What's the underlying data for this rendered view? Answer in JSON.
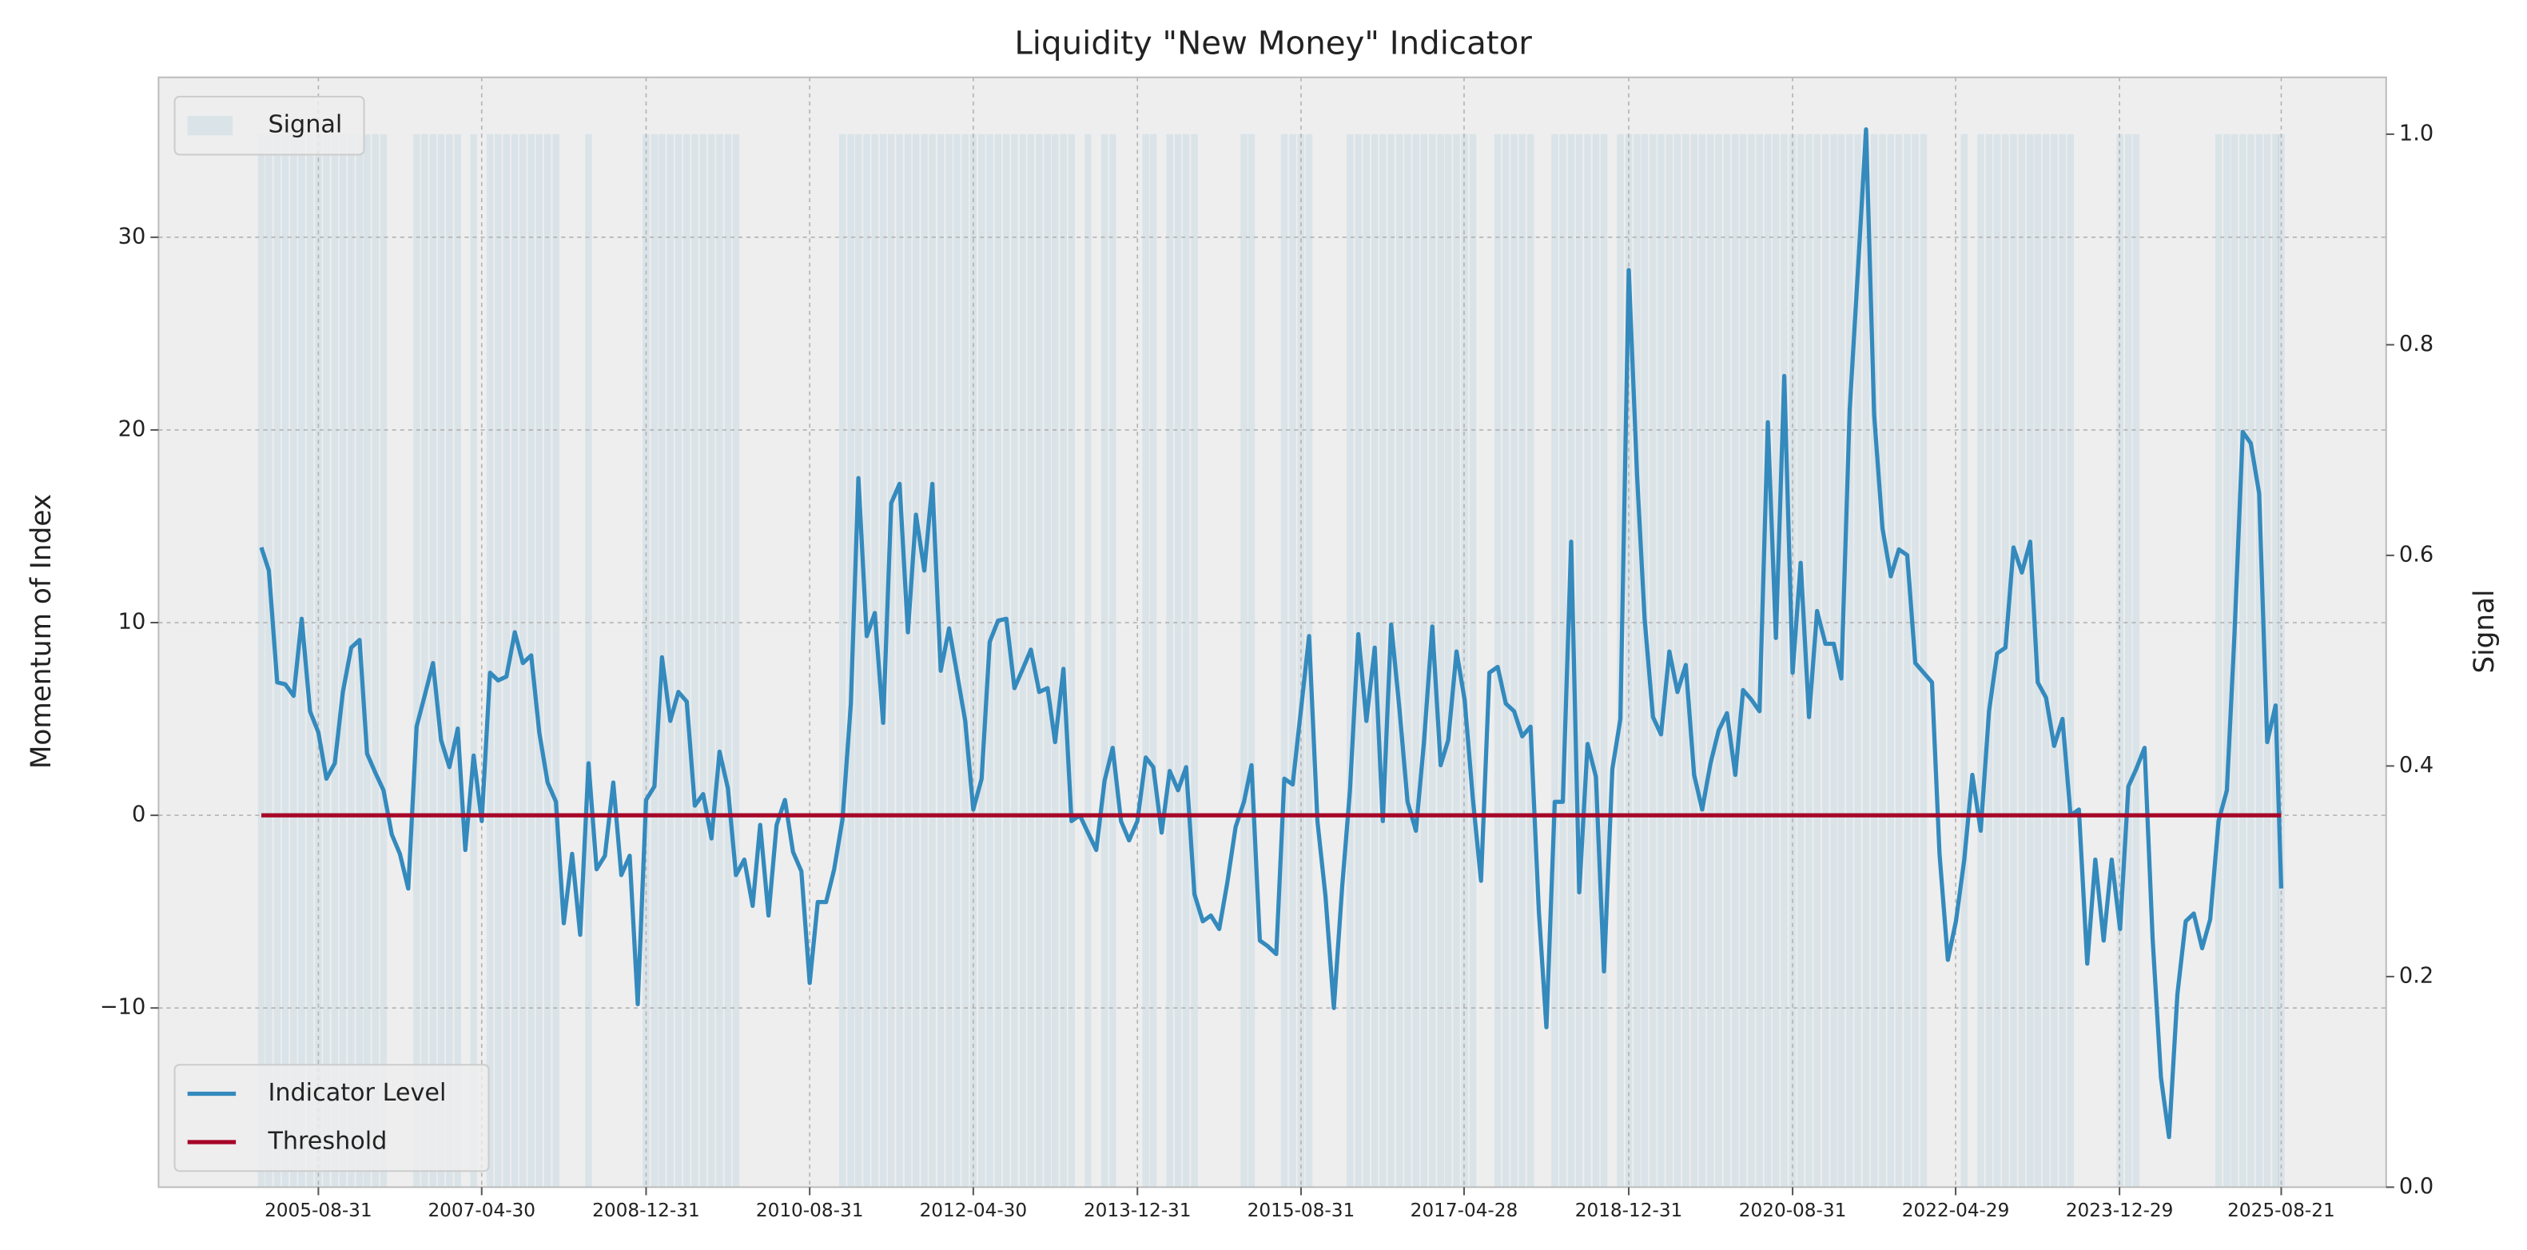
{
  "chart_data": {
    "type": "line",
    "title": "Liquidity \"New Money\" Indicator",
    "ylabel": "Momentum of Index",
    "y2label": "Signal",
    "x": [
      "2005-01-31",
      "2005-02-28",
      "2005-03-31",
      "2005-04-30",
      "2005-05-31",
      "2005-06-30",
      "2005-07-31",
      "2005-08-31",
      "2005-09-30",
      "2005-10-31",
      "2005-11-30",
      "2005-12-31",
      "2006-01-31",
      "2006-02-28",
      "2006-03-31",
      "2006-04-30",
      "2006-05-31",
      "2006-06-30",
      "2006-07-31",
      "2006-08-31",
      "2006-09-30",
      "2006-10-31",
      "2006-11-30",
      "2006-12-31",
      "2007-01-31",
      "2007-02-28",
      "2007-03-31",
      "2007-04-30",
      "2007-05-31",
      "2007-06-30",
      "2007-07-31",
      "2007-08-31",
      "2007-09-30",
      "2007-10-31",
      "2007-11-30",
      "2007-12-31",
      "2008-01-31",
      "2008-02-29",
      "2008-03-31",
      "2008-04-30",
      "2008-05-31",
      "2008-06-30",
      "2008-07-31",
      "2008-08-31",
      "2008-09-30",
      "2008-10-31",
      "2008-11-30",
      "2008-12-31",
      "2009-01-31",
      "2009-02-28",
      "2009-03-31",
      "2009-04-30",
      "2009-05-31",
      "2009-06-30",
      "2009-07-31",
      "2009-08-31",
      "2009-09-30",
      "2009-10-31",
      "2009-11-30",
      "2009-12-31",
      "2010-01-31",
      "2010-02-28",
      "2010-03-31",
      "2010-04-30",
      "2010-05-31",
      "2010-06-30",
      "2010-07-31",
      "2010-08-31",
      "2010-09-30",
      "2010-10-31",
      "2010-11-30",
      "2010-12-31",
      "2011-01-31",
      "2011-02-28",
      "2011-03-31",
      "2011-04-30",
      "2011-05-31",
      "2011-06-30",
      "2011-07-31",
      "2011-08-31",
      "2011-09-30",
      "2011-10-31",
      "2011-11-30",
      "2011-12-31",
      "2012-01-31",
      "2012-02-29",
      "2012-03-31",
      "2012-04-30",
      "2012-05-31",
      "2012-06-30",
      "2012-07-31",
      "2012-08-31",
      "2012-09-30",
      "2012-10-31",
      "2012-11-30",
      "2012-12-31",
      "2013-01-31",
      "2013-02-28",
      "2013-03-31",
      "2013-04-30",
      "2013-05-31",
      "2013-06-30",
      "2013-07-31",
      "2013-08-31",
      "2013-09-30",
      "2013-10-31",
      "2013-11-30",
      "2013-12-31",
      "2014-01-31",
      "2014-02-28",
      "2014-03-31",
      "2014-04-30",
      "2014-05-31",
      "2014-06-30",
      "2014-07-31",
      "2014-08-31",
      "2014-09-30",
      "2014-10-31",
      "2014-11-30",
      "2014-12-31",
      "2015-01-31",
      "2015-02-28",
      "2015-03-31",
      "2015-04-30",
      "2015-05-31",
      "2015-06-30",
      "2015-07-31",
      "2015-08-31",
      "2015-09-30",
      "2015-10-31",
      "2015-11-30",
      "2015-12-31",
      "2016-01-31",
      "2016-02-29",
      "2016-03-31",
      "2016-04-30",
      "2016-05-31",
      "2016-06-30",
      "2016-07-31",
      "2016-08-31",
      "2016-09-30",
      "2016-10-31",
      "2016-11-30",
      "2016-12-31",
      "2017-01-31",
      "2017-02-28",
      "2017-03-31",
      "2017-04-30",
      "2017-05-31",
      "2017-06-30",
      "2017-07-31",
      "2017-08-31",
      "2017-09-30",
      "2017-10-31",
      "2017-11-30",
      "2017-12-31",
      "2018-01-31",
      "2018-02-28",
      "2018-03-31",
      "2018-04-30",
      "2018-05-31",
      "2018-06-30",
      "2018-07-31",
      "2018-08-31",
      "2018-09-30",
      "2018-10-31",
      "2018-11-30",
      "2018-12-31",
      "2019-01-31",
      "2019-02-28",
      "2019-03-31",
      "2019-04-30",
      "2019-05-31",
      "2019-06-30",
      "2019-07-31",
      "2019-08-31",
      "2019-09-30",
      "2019-10-31",
      "2019-11-30",
      "2019-12-31",
      "2020-01-31",
      "2020-02-29",
      "2020-03-31",
      "2020-04-30",
      "2020-05-31",
      "2020-06-30",
      "2020-07-31",
      "2020-08-31",
      "2020-09-30",
      "2020-10-31",
      "2020-11-30",
      "2020-12-31",
      "2021-01-31",
      "2021-02-28",
      "2021-03-31",
      "2021-04-30",
      "2021-05-31",
      "2021-06-30",
      "2021-07-31",
      "2021-08-31",
      "2021-09-30",
      "2021-10-31",
      "2021-11-30",
      "2021-12-31",
      "2022-01-31",
      "2022-02-28",
      "2022-03-31",
      "2022-04-30",
      "2022-05-31",
      "2022-06-30",
      "2022-07-31",
      "2022-08-31",
      "2022-09-30",
      "2022-10-31",
      "2022-11-30",
      "2022-12-31",
      "2023-01-31",
      "2023-02-28",
      "2023-03-31",
      "2023-04-30",
      "2023-05-31",
      "2023-06-30",
      "2023-07-31",
      "2023-08-31",
      "2023-09-30",
      "2023-10-31",
      "2023-11-30",
      "2023-12-31",
      "2024-01-31",
      "2024-02-29",
      "2024-03-31",
      "2024-04-30",
      "2024-05-31",
      "2024-06-30",
      "2024-07-31",
      "2024-08-31",
      "2024-09-30",
      "2024-10-31",
      "2024-11-30",
      "2024-12-31",
      "2025-01-31",
      "2025-02-28",
      "2025-03-31",
      "2025-04-30",
      "2025-05-31",
      "2025-06-30",
      "2025-07-31",
      "2025-08-21"
    ],
    "series": [
      {
        "name": "Indicator Level",
        "color": "#348abd",
        "values": [
          13.9,
          12.7,
          6.9,
          6.8,
          6.2,
          10.2,
          5.4,
          4.3,
          1.9,
          2.7,
          6.4,
          8.7,
          9.1,
          3.2,
          2.2,
          1.3,
          -1.0,
          -2.0,
          -3.8,
          4.6,
          6.2,
          7.9,
          3.9,
          2.5,
          4.5,
          -1.8,
          3.1,
          -0.3,
          7.4,
          7.0,
          7.2,
          9.5,
          7.9,
          8.3,
          4.3,
          1.7,
          0.7,
          -5.6,
          -2.0,
          -6.2,
          2.7,
          -2.8,
          -2.1,
          1.7,
          -3.1,
          -2.1,
          -9.8,
          0.8,
          1.5,
          8.2,
          4.9,
          6.4,
          5.9,
          0.5,
          1.1,
          -1.2,
          3.3,
          1.4,
          -3.1,
          -2.3,
          -4.7,
          -0.5,
          -5.2,
          -0.5,
          0.8,
          -1.9,
          -2.9,
          -8.7,
          -4.5,
          -4.5,
          -2.8,
          -0.2,
          5.8,
          17.5,
          9.3,
          10.5,
          4.8,
          16.2,
          17.2,
          9.5,
          15.6,
          12.7,
          17.2,
          7.5,
          9.7,
          7.4,
          4.9,
          0.3,
          1.9,
          9.0,
          10.1,
          10.2,
          6.6,
          7.6,
          8.6,
          6.4,
          6.6,
          3.8,
          7.6,
          -0.3,
          0.0,
          -0.9,
          -1.8,
          1.8,
          3.5,
          -0.3,
          -1.3,
          -0.3,
          3.0,
          2.5,
          -0.9,
          2.3,
          1.3,
          2.5,
          -4.1,
          -5.5,
          -5.2,
          -5.9,
          -3.5,
          -0.6,
          0.7,
          2.6,
          -6.5,
          -6.8,
          -7.2,
          1.9,
          1.6,
          5.5,
          9.3,
          -0.3,
          -4.2,
          -10.0,
          -3.7,
          1.3,
          9.4,
          4.9,
          8.7,
          -0.3,
          9.9,
          5.5,
          0.7,
          -0.8,
          3.8,
          9.8,
          2.6,
          3.9,
          8.5,
          6.0,
          0.8,
          -3.4,
          7.4,
          7.7,
          5.8,
          5.4,
          4.1,
          4.6,
          -5.0,
          -11.0,
          0.7,
          0.7,
          14.2,
          -4.0,
          3.7,
          2.0,
          -8.1,
          2.4,
          5.0,
          28.3,
          17.6,
          10.2,
          5.1,
          4.2,
          8.5,
          6.4,
          7.8,
          2.1,
          0.3,
          2.7,
          4.4,
          5.3,
          2.1,
          6.5,
          6.0,
          5.4,
          20.4,
          9.2,
          22.8,
          7.4,
          13.1,
          5.1,
          10.6,
          8.9,
          8.9,
          7.1,
          21.0,
          28.1,
          35.6,
          20.8,
          14.9,
          12.4,
          13.8,
          13.5,
          7.9,
          7.4,
          6.9,
          -2.0,
          -7.5,
          -5.5,
          -2.3,
          2.1,
          -0.8,
          5.4,
          8.4,
          8.7,
          13.9,
          12.6,
          14.2,
          6.9,
          6.1,
          3.6,
          5.0,
          0.0,
          0.3,
          -7.7,
          -2.3,
          -6.5,
          -2.3,
          -5.9,
          1.5,
          2.4,
          3.5,
          -6.4,
          -13.6,
          -16.7,
          -9.3,
          -5.5,
          -5.1,
          -6.9,
          -5.4,
          -0.3,
          1.3,
          9.3,
          19.9,
          19.3,
          16.7,
          3.8,
          5.7,
          -3.8
        ]
      },
      {
        "name": "Signal",
        "type": "bar",
        "axis": "y2",
        "color": "#348abd",
        "alpha": 0.1,
        "values": [
          1,
          1,
          1,
          1,
          1,
          1,
          1,
          1,
          1,
          1,
          1,
          1,
          1,
          1,
          1,
          1,
          0,
          0,
          0,
          1,
          1,
          1,
          1,
          1,
          1,
          0,
          1,
          0,
          1,
          1,
          1,
          1,
          1,
          1,
          1,
          1,
          1,
          0,
          0,
          0,
          1,
          0,
          0,
          0,
          0,
          0,
          0,
          1,
          1,
          1,
          1,
          1,
          1,
          1,
          1,
          1,
          1,
          1,
          1,
          0,
          0,
          0,
          0,
          0,
          0,
          0,
          0,
          0,
          0,
          0,
          0,
          1,
          1,
          1,
          1,
          1,
          1,
          1,
          1,
          1,
          1,
          1,
          1,
          1,
          1,
          1,
          1,
          1,
          1,
          1,
          1,
          1,
          1,
          1,
          1,
          1,
          1,
          1,
          1,
          1,
          0,
          1,
          0,
          1,
          1,
          0,
          0,
          0,
          1,
          1,
          0,
          1,
          1,
          1,
          1,
          0,
          0,
          0,
          0,
          0,
          1,
          1,
          0,
          0,
          0,
          1,
          1,
          1,
          1,
          0,
          0,
          0,
          0,
          1,
          1,
          1,
          1,
          1,
          1,
          1,
          1,
          1,
          1,
          1,
          1,
          1,
          1,
          1,
          1,
          0,
          0,
          1,
          1,
          1,
          1,
          1,
          0,
          0,
          1,
          1,
          1,
          1,
          1,
          1,
          1,
          0,
          1,
          1,
          1,
          1,
          1,
          1,
          1,
          1,
          1,
          1,
          1,
          1,
          1,
          1,
          1,
          1,
          1,
          1,
          1,
          1,
          1,
          1,
          1,
          1,
          1,
          1,
          1,
          1,
          1,
          1,
          1,
          1,
          1,
          1,
          1,
          1,
          1,
          1,
          0,
          0,
          0,
          0,
          1,
          0,
          1,
          1,
          1,
          1,
          1,
          1,
          1,
          1,
          1,
          1,
          1,
          1,
          0,
          0,
          0,
          0,
          0,
          1,
          1,
          1,
          0,
          0,
          0,
          0,
          0,
          0,
          0,
          0,
          0,
          1,
          1,
          1,
          1,
          1,
          1,
          1,
          1,
          1
        ]
      }
    ],
    "threshold": {
      "name": "Threshold",
      "color": "#a60628",
      "value": 0
    },
    "xlim": [
      "2004-01-15",
      "2026-09-15"
    ],
    "xticks": [
      "2005-08-31",
      "2007-04-30",
      "2008-12-31",
      "2010-08-31",
      "2012-04-30",
      "2013-12-31",
      "2015-08-31",
      "2017-04-28",
      "2018-12-31",
      "2020-08-31",
      "2022-04-29",
      "2023-12-29",
      "2025-08-21"
    ],
    "ylim": [
      -19.3,
      38.3
    ],
    "yticks": [
      {
        "value": -10,
        "label": "−10"
      },
      0,
      10,
      20,
      30
    ],
    "y2lim": [
      0,
      1.054
    ],
    "y2ticks": [
      {
        "value": 0,
        "label": "0.0"
      },
      0.2,
      0.4,
      0.6,
      0.8,
      {
        "value": 1,
        "label": "1.0"
      }
    ],
    "grid": true,
    "legend_loc": "lower left",
    "y2_legend_loc": "upper left"
  }
}
